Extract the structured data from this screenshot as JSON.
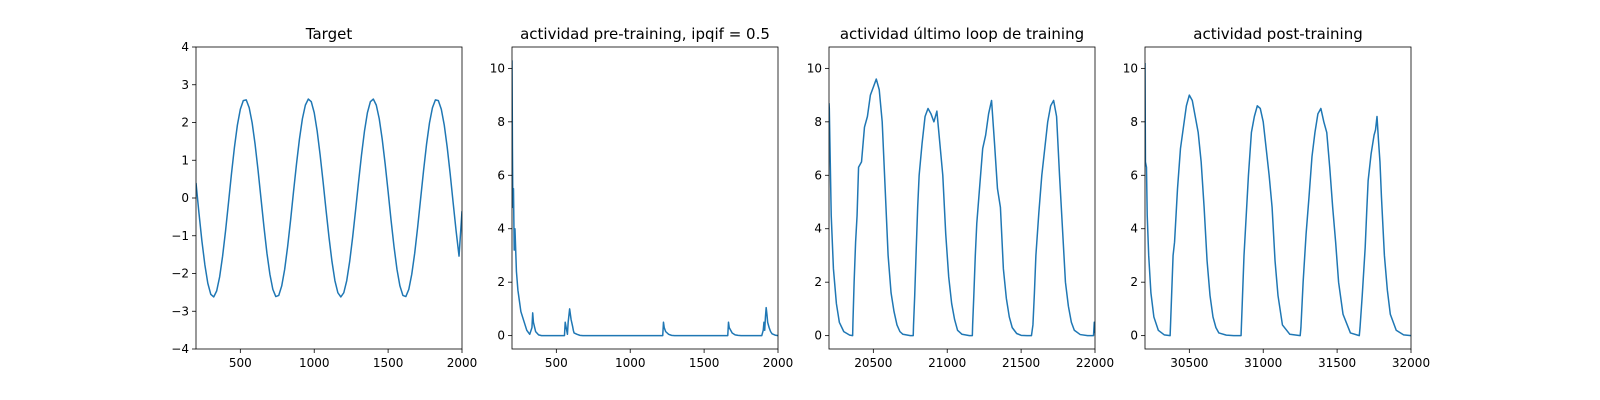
{
  "chart_data": [
    {
      "type": "line",
      "title": "Target",
      "xlabel": "",
      "ylabel": "",
      "xlim": [
        200,
        2000
      ],
      "ylim": [
        -4,
        4
      ],
      "xticks": [
        500,
        1000,
        1500,
        2000
      ],
      "yticks": [
        -4,
        -3,
        -2,
        -1,
        0,
        1,
        2,
        3,
        4
      ],
      "grid": false,
      "color": "#1f77b4",
      "series": [
        {
          "x": [
            200,
            220,
            240,
            260,
            280,
            300,
            320,
            340,
            360,
            380,
            400,
            420,
            440,
            460,
            480,
            500,
            520,
            540,
            560,
            580,
            600,
            620,
            640,
            660,
            680,
            700,
            720,
            740,
            760,
            780,
            800,
            820,
            840,
            860,
            880,
            900,
            920,
            940,
            960,
            980,
            1000,
            1020,
            1040,
            1060,
            1080,
            1100,
            1120,
            1140,
            1160,
            1180,
            1200,
            1220,
            1240,
            1260,
            1280,
            1300,
            1320,
            1340,
            1360,
            1380,
            1400,
            1420,
            1440,
            1460,
            1480,
            1500,
            1520,
            1540,
            1560,
            1580,
            1600,
            1620,
            1640,
            1660,
            1680,
            1700,
            1720,
            1740,
            1760,
            1780,
            1800,
            1820,
            1840,
            1860,
            1880,
            1900,
            1920,
            1940,
            1960,
            1980,
            2000
          ],
          "y": [
            0.4,
            -0.4,
            -1.14,
            -1.77,
            -2.26,
            -2.55,
            -2.62,
            -2.46,
            -2.09,
            -1.54,
            -0.87,
            -0.12,
            0.64,
            1.34,
            1.93,
            2.35,
            2.58,
            2.6,
            2.39,
            1.99,
            1.42,
            0.73,
            -0.02,
            -0.77,
            -1.46,
            -2.02,
            -2.42,
            -2.61,
            -2.58,
            -2.33,
            -1.89,
            -1.29,
            -0.59,
            0.17,
            0.9,
            1.56,
            2.1,
            2.46,
            2.62,
            2.55,
            2.26,
            1.77,
            1.14,
            0.43,
            -0.32,
            -1.04,
            -1.68,
            -2.19,
            -2.51,
            -2.62,
            -2.51,
            -2.19,
            -1.68,
            -1.04,
            -0.32,
            0.43,
            1.14,
            1.77,
            2.26,
            2.55,
            2.62,
            2.46,
            2.1,
            1.56,
            0.9,
            0.17,
            -0.59,
            -1.29,
            -1.89,
            -2.33,
            -2.58,
            -2.61,
            -2.42,
            -2.02,
            -1.46,
            -0.77,
            -0.02,
            0.73,
            1.42,
            1.99,
            2.39,
            2.6,
            2.58,
            2.35,
            1.93,
            1.34,
            0.64,
            -0.12,
            -0.87,
            -1.54,
            -0.35
          ]
        }
      ]
    },
    {
      "type": "line",
      "title": "actividad pre-training, ipqif = 0.5",
      "xlabel": "",
      "ylabel": "",
      "xlim": [
        200,
        2000
      ],
      "ylim": [
        -0.5,
        10.8
      ],
      "xticks": [
        500,
        1000,
        1500,
        2000
      ],
      "yticks": [
        0,
        2,
        4,
        6,
        8,
        10
      ],
      "grid": false,
      "color": "#1f77b4",
      "series": [
        {
          "x": [
            200,
            203,
            206,
            210,
            215,
            220,
            230,
            240,
            250,
            260,
            280,
            300,
            320,
            335,
            340,
            345,
            360,
            380,
            400,
            500,
            555,
            560,
            570,
            575,
            580,
            590,
            600,
            610,
            615,
            620,
            640,
            660,
            680,
            700,
            1000,
            1220,
            1225,
            1230,
            1240,
            1260,
            1280,
            1300,
            1650,
            1660,
            1665,
            1670,
            1690,
            1710,
            1730,
            1750,
            1890,
            1900,
            1905,
            1910,
            1915,
            1920,
            1925,
            1930,
            1940,
            1950,
            1960,
            1980,
            2000
          ],
          "y": [
            10.3,
            7,
            4.8,
            5.5,
            3.2,
            4,
            2.4,
            1.7,
            1.3,
            0.9,
            0.55,
            0.2,
            0.05,
            0.3,
            0.85,
            0.5,
            0.15,
            0.03,
            0,
            0,
            0,
            0.5,
            0.2,
            0.05,
            0.5,
            1,
            0.6,
            0.35,
            0.2,
            0.1,
            0.05,
            0.01,
            0,
            0,
            0,
            0,
            0.5,
            0.3,
            0.15,
            0.05,
            0.01,
            0,
            0,
            0,
            0.5,
            0.3,
            0.1,
            0.03,
            0.01,
            0,
            0,
            0.2,
            0.5,
            0.2,
            0.7,
            1.05,
            0.8,
            0.5,
            0.3,
            0.15,
            0.07,
            0.02,
            0
          ]
        }
      ]
    },
    {
      "type": "line",
      "title": "actividad último loop de training",
      "xlabel": "",
      "ylabel": "",
      "xlim": [
        20200,
        22000
      ],
      "ylim": [
        -0.5,
        10.8
      ],
      "xticks": [
        20500,
        21000,
        21500,
        22000
      ],
      "yticks": [
        0,
        2,
        4,
        6,
        8,
        10
      ],
      "grid": false,
      "color": "#1f77b4",
      "series": [
        {
          "x": [
            20200,
            20202,
            20215,
            20230,
            20250,
            20270,
            20300,
            20340,
            20360,
            20362,
            20370,
            20380,
            20390,
            20400,
            20420,
            20440,
            20460,
            20480,
            20500,
            20520,
            20540,
            20550,
            20560,
            20580,
            20600,
            20620,
            20640,
            20660,
            20680,
            20700,
            20750,
            20770,
            20772,
            20780,
            20790,
            20800,
            20810,
            20830,
            20850,
            20870,
            20890,
            20910,
            20930,
            20950,
            20970,
            20990,
            21010,
            21030,
            21050,
            21070,
            21100,
            21150,
            21170,
            21172,
            21180,
            21190,
            21200,
            21220,
            21240,
            21260,
            21280,
            21300,
            21320,
            21340,
            21360,
            21380,
            21400,
            21420,
            21440,
            21470,
            21500,
            21540,
            21570,
            21580,
            21590,
            21600,
            21620,
            21640,
            21660,
            21680,
            21700,
            21720,
            21740,
            21760,
            21780,
            21800,
            21820,
            21840,
            21860,
            21900,
            21950,
            21990,
            21995,
            22000
          ],
          "y": [
            8.7,
            8.5,
            4.5,
            2.5,
            1.2,
            0.5,
            0.15,
            0.02,
            0,
            0.5,
            2,
            3.5,
            4.5,
            6.3,
            6.5,
            7.8,
            8.2,
            9,
            9.3,
            9.6,
            9.2,
            8.6,
            8,
            5.5,
            3,
            1.6,
            0.9,
            0.4,
            0.15,
            0.05,
            0,
            0,
            0.4,
            1.5,
            3.2,
            4.8,
            6,
            7.2,
            8.2,
            8.5,
            8.3,
            8,
            8.4,
            7.2,
            6,
            3.8,
            2.2,
            1.2,
            0.6,
            0.2,
            0.05,
            0,
            0,
            0.4,
            1.5,
            3,
            4.2,
            5.6,
            7,
            7.5,
            8.3,
            8.8,
            7.2,
            5.5,
            4.8,
            2.5,
            1.4,
            0.7,
            0.3,
            0.08,
            0.01,
            0,
            0,
            0.4,
            1.6,
            3,
            4.6,
            6,
            7,
            8,
            8.6,
            8.8,
            8.2,
            6,
            4,
            2,
            1.1,
            0.5,
            0.2,
            0.04,
            0,
            0,
            0.5,
            0.1
          ]
        }
      ]
    },
    {
      "type": "line",
      "title": "actividad post-training",
      "xlabel": "",
      "ylabel": "",
      "xlim": [
        30200,
        32000
      ],
      "ylim": [
        -0.5,
        10.8
      ],
      "xticks": [
        30500,
        31000,
        31500,
        32000
      ],
      "yticks": [
        0,
        2,
        4,
        6,
        8,
        10
      ],
      "grid": false,
      "color": "#1f77b4",
      "series": [
        {
          "x": [
            30200,
            30203,
            30210,
            30215,
            30225,
            30240,
            30260,
            30290,
            30330,
            30370,
            30372,
            30380,
            30390,
            30400,
            30420,
            30440,
            30460,
            30480,
            30500,
            30520,
            30540,
            30560,
            30580,
            30600,
            30620,
            30640,
            30660,
            30680,
            30700,
            30750,
            30800,
            30850,
            30852,
            30860,
            30870,
            30880,
            30900,
            30920,
            30940,
            30960,
            30980,
            31000,
            31020,
            31040,
            31060,
            31080,
            31100,
            31130,
            31180,
            31250,
            31255,
            31270,
            31290,
            31310,
            31330,
            31350,
            31370,
            31390,
            31410,
            31430,
            31450,
            31470,
            31490,
            31510,
            31540,
            31590,
            31650,
            31655,
            31670,
            31690,
            31700,
            31710,
            31730,
            31750,
            31760,
            31770,
            31780,
            31790,
            31800,
            31820,
            31840,
            31860,
            31900,
            31950,
            32000
          ],
          "y": [
            10.2,
            6.5,
            6.3,
            4.5,
            3,
            1.6,
            0.7,
            0.2,
            0.03,
            0,
            0.3,
            1.5,
            3,
            3.5,
            5.5,
            7,
            7.8,
            8.6,
            9,
            8.8,
            8.2,
            7.6,
            6.5,
            4.8,
            2.8,
            1.5,
            0.7,
            0.3,
            0.1,
            0.02,
            0,
            0,
            0.3,
            1.5,
            3,
            4,
            6,
            7.6,
            8.2,
            8.6,
            8.5,
            8,
            7,
            6,
            4.8,
            2.8,
            1.5,
            0.4,
            0.05,
            0,
            0.3,
            2,
            3.8,
            5.2,
            6.7,
            7.6,
            8.3,
            8.5,
            8,
            7.6,
            6.3,
            4.8,
            3.5,
            2,
            0.8,
            0.1,
            0,
            0.3,
            1.5,
            3.3,
            4.6,
            5.8,
            6.8,
            7.5,
            7.7,
            8.2,
            7.3,
            6.5,
            5.2,
            3,
            1.7,
            0.8,
            0.2,
            0.03,
            0
          ]
        }
      ]
    }
  ]
}
